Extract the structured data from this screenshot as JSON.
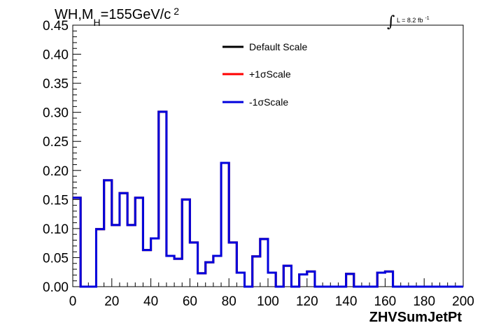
{
  "chart_data": {
    "type": "histogram",
    "title_main": "WH,M",
    "title_sub": "H",
    "title_rest": "=155GeV/c",
    "title_sup": "2",
    "lumi_label": "L = 8.2 fb",
    "lumi_sup": "-1",
    "integral_symbol": "∫",
    "xlabel": "ZHVSumJetPt",
    "xlim": [
      0,
      200
    ],
    "ylim": [
      0,
      0.45
    ],
    "xticks": [
      0,
      20,
      40,
      60,
      80,
      100,
      120,
      140,
      160,
      180,
      200
    ],
    "yticks": [
      "0.00",
      "0.05",
      "0.10",
      "0.15",
      "0.20",
      "0.25",
      "0.30",
      "0.35",
      "0.40",
      "0.45"
    ],
    "bin_width": 4,
    "bin_low_edges": [
      0,
      4,
      8,
      12,
      16,
      20,
      24,
      28,
      32,
      36,
      40,
      44,
      48,
      52,
      56,
      60,
      64,
      68,
      72,
      76,
      80,
      84,
      88,
      92,
      96,
      100,
      104,
      108,
      112,
      116,
      120,
      124,
      128,
      132,
      136,
      140,
      144,
      148,
      152,
      156,
      160,
      164,
      168,
      172,
      176,
      180,
      184,
      188,
      192,
      196
    ],
    "series": [
      {
        "name": "Default Scale",
        "color": "#000000",
        "values": [
          0.153,
          0,
          0,
          0.099,
          0.183,
          0.106,
          0.161,
          0.106,
          0.153,
          0.063,
          0.083,
          0.301,
          0.053,
          0.048,
          0.15,
          0.076,
          0.023,
          0.042,
          0.053,
          0.213,
          0.076,
          0.024,
          0,
          0.052,
          0.082,
          0.024,
          0,
          0.036,
          0,
          0.021,
          0.026,
          0,
          0,
          0,
          0,
          0.022,
          0,
          0,
          0,
          0.024,
          0.026,
          0,
          0,
          0,
          0,
          0,
          0,
          0,
          0,
          0
        ]
      },
      {
        "name": "+1σScale",
        "color": "#ff0000",
        "values": [
          0.153,
          0,
          0,
          0.099,
          0.183,
          0.106,
          0.161,
          0.106,
          0.153,
          0.063,
          0.083,
          0.301,
          0.053,
          0.048,
          0.15,
          0.076,
          0.023,
          0.042,
          0.053,
          0.213,
          0.076,
          0.024,
          0,
          0.052,
          0.082,
          0.024,
          0,
          0.036,
          0,
          0.021,
          0.026,
          0,
          0,
          0,
          0,
          0.022,
          0,
          0,
          0,
          0.024,
          0.026,
          0,
          0,
          0,
          0,
          0,
          0,
          0,
          0,
          0
        ]
      },
      {
        "name": "-1σScale",
        "color": "#0000dd",
        "values": [
          0.153,
          0,
          0,
          0.099,
          0.183,
          0.106,
          0.161,
          0.106,
          0.153,
          0.063,
          0.083,
          0.301,
          0.053,
          0.048,
          0.15,
          0.076,
          0.023,
          0.042,
          0.053,
          0.213,
          0.076,
          0.024,
          0,
          0.052,
          0.082,
          0.024,
          0,
          0.036,
          0,
          0.021,
          0.026,
          0,
          0,
          0,
          0,
          0.022,
          0,
          0,
          0,
          0.024,
          0.026,
          0,
          0,
          0,
          0,
          0,
          0,
          0,
          0,
          0
        ]
      }
    ],
    "legend": [
      {
        "label": "Default Scale",
        "color": "#000000"
      },
      {
        "label": "+1σScale",
        "color": "#ff0000"
      },
      {
        "label": "-1σScale",
        "color": "#0000dd"
      }
    ]
  }
}
